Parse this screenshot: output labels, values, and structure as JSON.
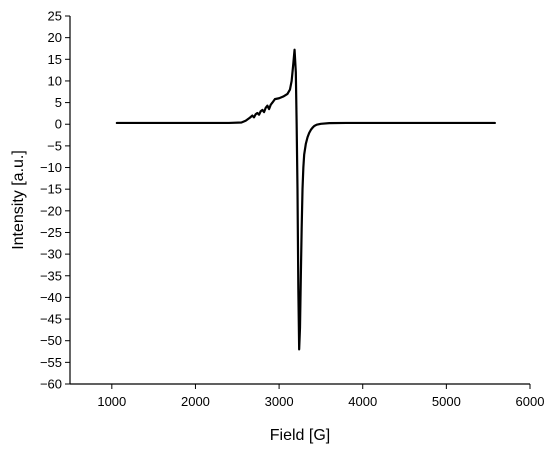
{
  "chart_data": {
    "type": "line",
    "title": "",
    "xlabel": "Field [G]",
    "ylabel": "Intensity [a.u.]",
    "xlim": [
      500,
      6000
    ],
    "ylim": [
      -60,
      25
    ],
    "xticks": [
      "1000",
      "2000",
      "3000",
      "4000",
      "5000",
      "6000"
    ],
    "yticks": [
      "25",
      "20",
      "15",
      "10",
      "5",
      "0",
      "-5",
      "-10",
      "-15",
      "-20",
      "-25",
      "-30",
      "-35",
      "-40",
      "-45",
      "-50",
      "-55",
      "-60"
    ],
    "grid": false,
    "legend": "none",
    "line_color": "#000000",
    "series": [
      {
        "x": [
          1060,
          1500,
          2000,
          2400,
          2550,
          2600,
          2650,
          2680,
          2700,
          2720,
          2740,
          2760,
          2780,
          2800,
          2820,
          2840,
          2860,
          2880,
          2900,
          2920,
          2950,
          3000,
          3050,
          3100,
          3130,
          3150,
          3170,
          3185,
          3200,
          3210,
          3220,
          3230,
          3240,
          3250,
          3260,
          3270,
          3280,
          3290,
          3300,
          3320,
          3340,
          3360,
          3380,
          3400,
          3420,
          3450,
          3500,
          3600,
          3800,
          4200,
          5000,
          5580
        ],
        "y": [
          0.3,
          0.3,
          0.3,
          0.3,
          0.4,
          0.8,
          1.5,
          2.0,
          1.6,
          2.3,
          2.6,
          2.2,
          3.0,
          3.3,
          2.8,
          3.8,
          4.3,
          3.5,
          4.5,
          5.0,
          5.8,
          6.0,
          6.4,
          7.0,
          8.0,
          10.0,
          14.0,
          17.2,
          12.0,
          0.0,
          -15.0,
          -38.0,
          -52.0,
          -47.0,
          -35.0,
          -24.0,
          -15.0,
          -10.0,
          -7.0,
          -4.5,
          -3.0,
          -2.0,
          -1.3,
          -0.8,
          -0.4,
          -0.1,
          0.1,
          0.25,
          0.3,
          0.3,
          0.3,
          0.3
        ]
      }
    ]
  }
}
